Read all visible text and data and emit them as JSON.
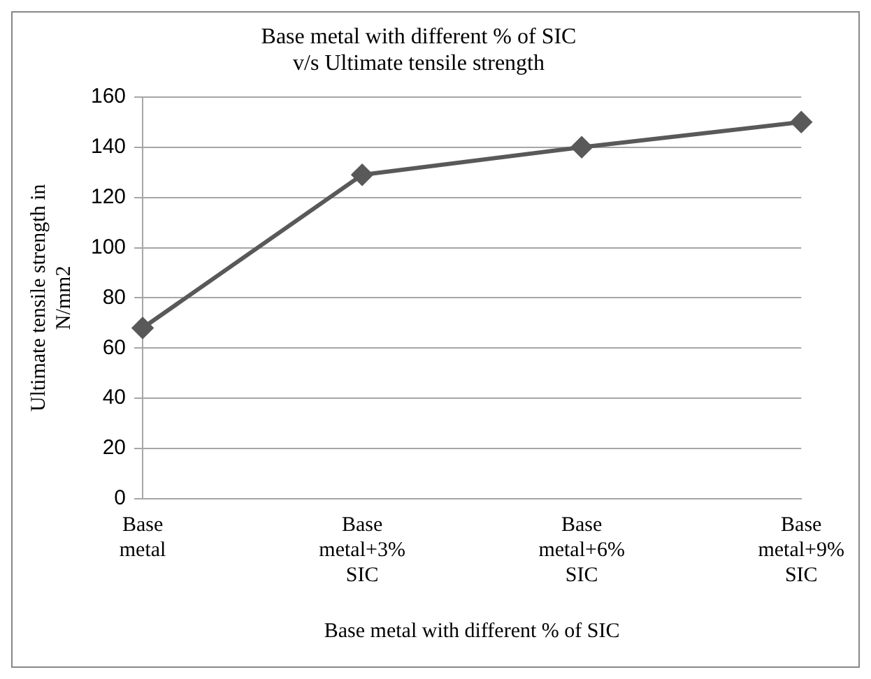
{
  "chart_data": {
    "type": "line",
    "title": "Base metal with different % of SIC v/s Ultimate tensile strength",
    "xlabel": "Base metal with different % of SIC",
    "ylabel": "Ultimate tensile strength in N/mm2",
    "categories": [
      "Base metal",
      "Base metal+3% SIC",
      "Base metal+6% SIC",
      "Base metal+9% SIC"
    ],
    "series": [
      {
        "color": "#595959",
        "values": [
          68,
          129,
          140,
          150
        ]
      }
    ],
    "ylim": [
      0,
      160
    ],
    "yticks": [
      0,
      20,
      40,
      60,
      80,
      100,
      120,
      140,
      160
    ],
    "grid": "y",
    "legend": false,
    "marker": "diamond",
    "line_style": "solid"
  }
}
